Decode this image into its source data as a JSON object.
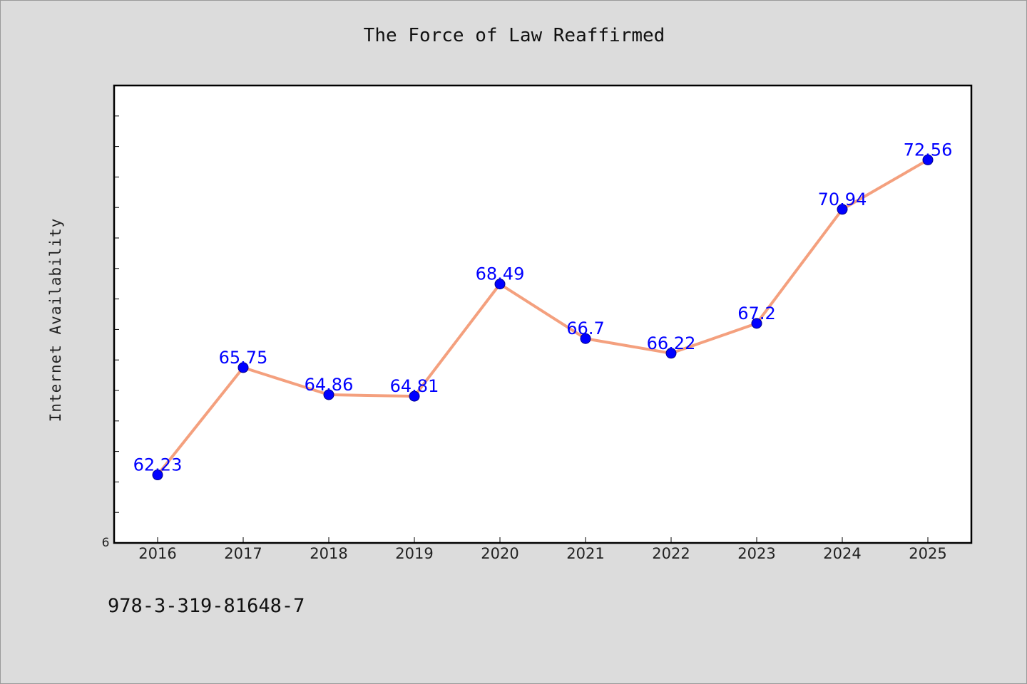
{
  "chart_data": {
    "type": "line",
    "title": "The Force of Law Reaffirmed",
    "xlabel": "",
    "ylabel": "Internet Availability",
    "categories": [
      "2016",
      "2017",
      "2018",
      "2019",
      "2020",
      "2021",
      "2022",
      "2023",
      "2024",
      "2025"
    ],
    "series": [
      {
        "values": [
          62.23,
          65.75,
          64.86,
          64.81,
          68.49,
          66.7,
          66.22,
          67.2,
          70.94,
          72.56
        ],
        "labels": [
          "62.23",
          "65.75",
          "64.86",
          "64.81",
          "68.49",
          "66.7",
          "66.22",
          "67.2",
          "70.94",
          "72.56"
        ]
      }
    ],
    "ylim": [
      60,
      75
    ],
    "y_min_tick_label": "6",
    "grid": false,
    "legend": "none",
    "colors": {
      "line": "#f4a07e",
      "marker": "#0000ff",
      "data_label": "#0000ff",
      "figure_background": "#dcdcdc",
      "plot_background": "#ffffff"
    }
  },
  "footnote": "978-3-319-81648-7"
}
